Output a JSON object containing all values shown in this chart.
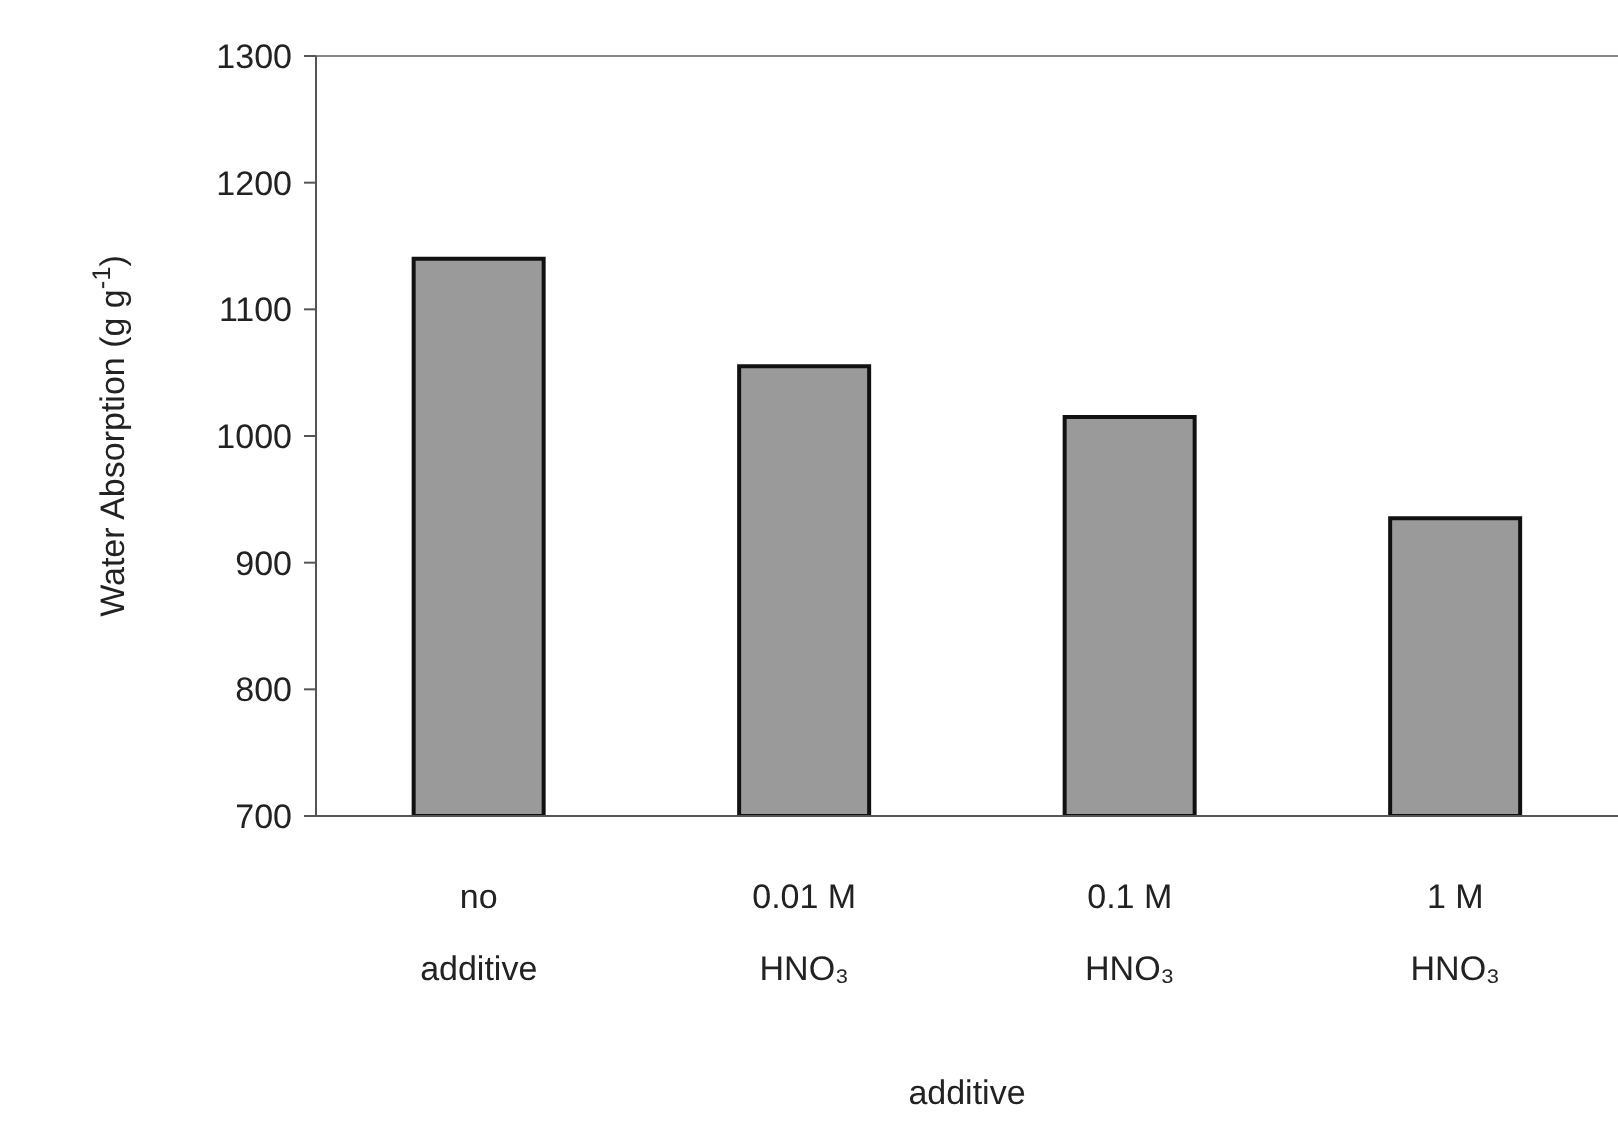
{
  "chart_data": {
    "type": "bar",
    "xlabel": "additive",
    "ylabel": "Water Absorption (g g$^{-1}$)",
    "categories": [
      "no\nadditive",
      "0.01 M\nHNO₃",
      "0.1 M\nHNO₃",
      "1 M\nHNO₃"
    ],
    "values": [
      1140,
      1055,
      1015,
      935
    ],
    "color": "#9a9a9a",
    "ylim": [
      700,
      1300
    ],
    "yticks": [
      700,
      800,
      900,
      1000,
      1100,
      1200,
      1300
    ],
    "grid": false,
    "legend": false
  }
}
